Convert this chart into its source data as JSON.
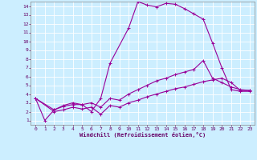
{
  "background_color": "#cceeff",
  "grid_color": "#ffffff",
  "line_color": "#990099",
  "xlabel": "Windchill (Refroidissement éolien,°C)",
  "xlim": [
    -0.5,
    23.5
  ],
  "ylim": [
    0.5,
    14.5
  ],
  "xticks": [
    0,
    1,
    2,
    3,
    4,
    5,
    6,
    7,
    8,
    9,
    10,
    11,
    12,
    13,
    14,
    15,
    16,
    17,
    18,
    19,
    20,
    21,
    22,
    23
  ],
  "yticks": [
    1,
    2,
    3,
    4,
    5,
    6,
    7,
    8,
    9,
    10,
    11,
    12,
    13,
    14
  ],
  "line1_x": [
    0,
    1,
    2,
    3,
    4,
    5,
    6,
    7,
    8,
    10,
    11,
    12,
    13,
    14,
    15,
    16,
    17,
    18,
    19,
    20,
    21,
    22,
    23
  ],
  "line1_y": [
    3.5,
    1.0,
    2.2,
    2.6,
    2.8,
    2.8,
    2.0,
    3.5,
    7.5,
    11.5,
    14.5,
    14.1,
    13.9,
    14.3,
    14.2,
    13.7,
    13.1,
    12.5,
    9.8,
    7.0,
    4.5,
    4.3,
    4.3
  ],
  "line2_x": [
    0,
    2,
    3,
    4,
    5,
    6,
    7,
    8,
    9,
    10,
    11,
    12,
    13,
    14,
    15,
    16,
    17,
    18,
    19,
    20,
    21,
    22,
    23
  ],
  "line2_y": [
    3.5,
    2.2,
    2.7,
    3.0,
    2.8,
    3.0,
    2.5,
    3.5,
    3.3,
    4.0,
    4.5,
    5.0,
    5.5,
    5.8,
    6.2,
    6.5,
    6.8,
    7.8,
    5.8,
    5.3,
    4.8,
    4.5,
    4.4
  ],
  "line3_x": [
    0,
    2,
    3,
    4,
    5,
    6,
    7,
    8,
    9,
    10,
    11,
    12,
    13,
    14,
    15,
    16,
    17,
    18,
    19,
    20,
    21,
    22,
    23
  ],
  "line3_y": [
    3.5,
    2.0,
    2.2,
    2.5,
    2.3,
    2.5,
    1.7,
    2.7,
    2.5,
    3.0,
    3.3,
    3.7,
    4.0,
    4.3,
    4.6,
    4.8,
    5.1,
    5.4,
    5.6,
    5.8,
    5.3,
    4.4,
    4.4
  ]
}
